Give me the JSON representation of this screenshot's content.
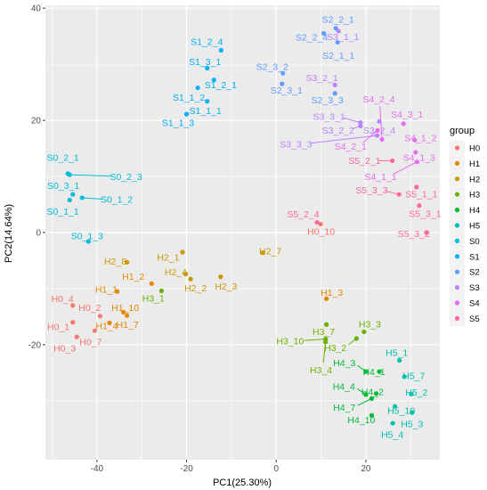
{
  "chart_data": {
    "type": "scatter",
    "xlabel": "PC1(25.30%)",
    "ylabel": "PC2(14.64%)",
    "xlim": [
      -51.5,
      36.5
    ],
    "ylim": [
      -40.5,
      40.5
    ],
    "xticks": [
      -40,
      -20,
      0,
      20
    ],
    "yticks": [
      -20,
      0,
      20,
      40
    ],
    "grid": true,
    "legend": {
      "title": "group",
      "position": "right"
    },
    "groups": [
      {
        "name": "H0",
        "color": "#F8766D"
      },
      {
        "name": "H1",
        "color": "#E58700"
      },
      {
        "name": "H2",
        "color": "#C99800"
      },
      {
        "name": "H3",
        "color": "#6BB100"
      },
      {
        "name": "H4",
        "color": "#00BA38"
      },
      {
        "name": "H5",
        "color": "#00C0AF"
      },
      {
        "name": "S0",
        "color": "#00BCD8"
      },
      {
        "name": "S1",
        "color": "#00B0F6"
      },
      {
        "name": "S2",
        "color": "#619CFF"
      },
      {
        "name": "S3",
        "color": "#B983FF"
      },
      {
        "name": "S4",
        "color": "#E76BF3"
      },
      {
        "name": "S5",
        "color": "#FF67A4"
      }
    ],
    "points": [
      {
        "label": "H0_1",
        "group": "H0",
        "x": -45.4,
        "y": -16.0,
        "lx": -48.6,
        "ly": -16.8
      },
      {
        "label": "H0_2",
        "group": "H0",
        "x": -39.3,
        "y": -14.9,
        "lx": -41.6,
        "ly": -13.4
      },
      {
        "label": "H0_3",
        "group": "H0",
        "x": -44.5,
        "y": -18.6,
        "lx": -47.2,
        "ly": -20.6
      },
      {
        "label": "H0_4",
        "group": "H0",
        "x": -45.4,
        "y": -13.0,
        "lx": -47.7,
        "ly": -11.8
      },
      {
        "label": "H0_7",
        "group": "H0",
        "x": -40.5,
        "y": -17.5,
        "lx": -41.4,
        "ly": -19.5
      },
      {
        "label": "H0_10",
        "group": "H0",
        "x": 9.9,
        "y": 1.5,
        "lx": 10.0,
        "ly": 0.2
      },
      {
        "label": "H1_1",
        "group": "H1",
        "x": -35.5,
        "y": -10.5,
        "lx": -37.9,
        "ly": -10.1
      },
      {
        "label": "H1_2",
        "group": "H1",
        "x": -27.8,
        "y": -9.1,
        "lx": -31.9,
        "ly": -7.8
      },
      {
        "label": "H1_3",
        "group": "H1",
        "x": 11.2,
        "y": -11.8,
        "lx": 12.4,
        "ly": -10.7
      },
      {
        "label": "H1_4",
        "group": "H1",
        "x": -37.2,
        "y": -16.1,
        "lx": -37.8,
        "ly": -16.6
      },
      {
        "label": "H1_7",
        "group": "H1",
        "x": -33.3,
        "y": -14.8,
        "lx": -33.2,
        "ly": -16.4
      },
      {
        "label": "H1_10",
        "group": "H1",
        "x": -34.1,
        "y": -14.2,
        "lx": -33.7,
        "ly": -13.4
      },
      {
        "label": "H2_1",
        "group": "H2",
        "x": -20.9,
        "y": -3.5,
        "lx": -24.1,
        "ly": -4.4
      },
      {
        "label": "H2_2",
        "group": "H2",
        "x": -19.1,
        "y": -8.3,
        "lx": -18.0,
        "ly": -9.9
      },
      {
        "label": "H2_3",
        "group": "H2",
        "x": -12.4,
        "y": -7.9,
        "lx": -11.2,
        "ly": -9.6
      },
      {
        "label": "H2_4",
        "group": "H2",
        "x": -20.2,
        "y": -7.4,
        "lx": -22.4,
        "ly": -7.0
      },
      {
        "label": "H2_7",
        "group": "H2",
        "x": -3.0,
        "y": -3.6,
        "lx": -1.3,
        "ly": -3.3
      },
      {
        "label": "H2_8",
        "group": "H2",
        "x": -33.3,
        "y": -5.3,
        "lx": -35.9,
        "ly": -5.1
      },
      {
        "label": "H3_1",
        "group": "H3",
        "x": -25.6,
        "y": -10.4,
        "lx": -27.4,
        "ly": -11.7
      },
      {
        "label": "H3_2",
        "group": "H3",
        "x": 17.9,
        "y": -18.9,
        "lx": 13.2,
        "ly": -20.5
      },
      {
        "label": "H3_3",
        "group": "H3",
        "x": 19.6,
        "y": -17.7,
        "lx": 20.9,
        "ly": -16.3
      },
      {
        "label": "H3_4",
        "group": "H3",
        "x": 11.0,
        "y": -19.5,
        "lx": 10.0,
        "ly": -24.5
      },
      {
        "label": "H3_7",
        "group": "H3",
        "x": 11.2,
        "y": -16.4,
        "lx": 10.6,
        "ly": -17.7
      },
      {
        "label": "H3_10",
        "group": "H3",
        "x": 11.0,
        "y": -19.0,
        "lx": 3.1,
        "ly": -19.3
      },
      {
        "label": "H4_1",
        "group": "H4",
        "x": 23.0,
        "y": -24.8,
        "lx": 21.8,
        "ly": -24.8
      },
      {
        "label": "H4_2",
        "group": "H4",
        "x": 22.3,
        "y": -28.7,
        "lx": 21.5,
        "ly": -28.4
      },
      {
        "label": "H4_3",
        "group": "H4",
        "x": 20.0,
        "y": -24.8,
        "lx": 15.2,
        "ly": -23.2
      },
      {
        "label": "H4_4",
        "group": "H4",
        "x": 20.0,
        "y": -28.9,
        "lx": 15.1,
        "ly": -27.4
      },
      {
        "label": "H4_7",
        "group": "H4",
        "x": 21.3,
        "y": -29.6,
        "lx": 15.2,
        "ly": -31.2
      },
      {
        "label": "H4_10",
        "group": "H4",
        "x": 21.3,
        "y": -32.6,
        "lx": 19.0,
        "ly": -33.4
      },
      {
        "label": "H5_1",
        "group": "H5",
        "x": 27.5,
        "y": -22.8,
        "lx": 26.9,
        "ly": -21.4
      },
      {
        "label": "H5_2",
        "group": "H5",
        "x": 30.1,
        "y": -28.8,
        "lx": 31.3,
        "ly": -28.5
      },
      {
        "label": "H5_3",
        "group": "H5",
        "x": 30.3,
        "y": -32.1,
        "lx": 30.3,
        "ly": -34.1
      },
      {
        "label": "H5_4",
        "group": "H5",
        "x": 26.0,
        "y": -34.0,
        "lx": 25.9,
        "ly": -36.0
      },
      {
        "label": "H5_7",
        "group": "H5",
        "x": 28.6,
        "y": -25.7,
        "lx": 30.7,
        "ly": -25.5
      },
      {
        "label": "H5_10",
        "group": "H5",
        "x": 26.5,
        "y": -31.0,
        "lx": 27.9,
        "ly": -31.7
      },
      {
        "label": "S0_1_1",
        "group": "S0",
        "x": -46.1,
        "y": 5.8,
        "lx": -47.6,
        "ly": 3.8
      },
      {
        "label": "S0_1_2",
        "group": "S0",
        "x": -43.3,
        "y": 6.2,
        "lx": -35.6,
        "ly": 5.9
      },
      {
        "label": "S0_1_3",
        "group": "S0",
        "x": -41.9,
        "y": -1.6,
        "lx": -42.2,
        "ly": -0.6
      },
      {
        "label": "S0_2_1",
        "group": "S0",
        "x": -46.5,
        "y": 10.5,
        "lx": -47.6,
        "ly": 13.4
      },
      {
        "label": "S0_2_3",
        "group": "S0",
        "x": -46.1,
        "y": 10.3,
        "lx": -33.5,
        "ly": 10.0
      },
      {
        "label": "S0_3_1",
        "group": "S0",
        "x": -45.4,
        "y": 6.8,
        "lx": -47.5,
        "ly": 8.4
      },
      {
        "label": "S1_1_1",
        "group": "S1",
        "x": -15.4,
        "y": 23.4,
        "lx": -15.8,
        "ly": 21.7
      },
      {
        "label": "S1_1_2",
        "group": "S1",
        "x": -17.5,
        "y": 25.8,
        "lx": -19.5,
        "ly": 24.1
      },
      {
        "label": "S1_1_3",
        "group": "S1",
        "x": -20.0,
        "y": 21.1,
        "lx": -21.9,
        "ly": 19.6
      },
      {
        "label": "S1_2_1",
        "group": "S1",
        "x": -13.9,
        "y": 27.2,
        "lx": -12.4,
        "ly": 26.3
      },
      {
        "label": "S1_2_4",
        "group": "S1",
        "x": -12.3,
        "y": 32.5,
        "lx": -15.5,
        "ly": 34.0
      },
      {
        "label": "S1_3_1",
        "group": "S1",
        "x": -15.4,
        "y": 29.3,
        "lx": -15.9,
        "ly": 30.5
      },
      {
        "label": "S2_1_1",
        "group": "S2",
        "x": 13.7,
        "y": 33.9,
        "lx": 13.9,
        "ly": 31.6
      },
      {
        "label": "S2_2_1",
        "group": "S2",
        "x": 13.3,
        "y": 36.4,
        "lx": 13.8,
        "ly": 38.0
      },
      {
        "label": "S2_2_4",
        "group": "S2",
        "x": 10.6,
        "y": 35.5,
        "lx": 7.9,
        "ly": 34.8
      },
      {
        "label": "S2_3_1",
        "group": "S2",
        "x": 1.3,
        "y": 26.5,
        "lx": 2.3,
        "ly": 25.4
      },
      {
        "label": "S2_3_2",
        "group": "S2",
        "x": 1.5,
        "y": 28.4,
        "lx": -0.9,
        "ly": 29.6
      },
      {
        "label": "S2_3_3",
        "group": "S2",
        "x": 13.1,
        "y": 24.8,
        "lx": 11.4,
        "ly": 23.6
      },
      {
        "label": "S3_1_1",
        "group": "S3",
        "x": 13.9,
        "y": 35.9,
        "lx": 14.9,
        "ly": 34.9
      },
      {
        "label": "S3_2_1",
        "group": "S3",
        "x": 13.1,
        "y": 26.3,
        "lx": 10.2,
        "ly": 27.6
      },
      {
        "label": "S3_2_2",
        "group": "S3",
        "x": 18.8,
        "y": 19.0,
        "lx": 13.8,
        "ly": 18.2
      },
      {
        "label": "S3_2_4",
        "group": "S3",
        "x": 23.0,
        "y": 19.8,
        "lx": 23.0,
        "ly": 18.2
      },
      {
        "label": "S3_3_1",
        "group": "S3",
        "x": 18.8,
        "y": 19.6,
        "lx": 11.8,
        "ly": 20.7
      },
      {
        "label": "S3_3_3",
        "group": "S3",
        "x": 22.5,
        "y": 17.3,
        "lx": 4.4,
        "ly": 15.8
      },
      {
        "label": "S4_1_1",
        "group": "S4",
        "x": 31.4,
        "y": 12.6,
        "lx": 23.3,
        "ly": 10.0
      },
      {
        "label": "S4_1_2",
        "group": "S4",
        "x": 30.9,
        "y": 16.5,
        "lx": 32.2,
        "ly": 16.9
      },
      {
        "label": "S4_1_3",
        "group": "S4",
        "x": 31.1,
        "y": 14.3,
        "lx": 31.9,
        "ly": 13.4
      },
      {
        "label": "S4_2_1",
        "group": "S4",
        "x": 22.6,
        "y": 18.2,
        "lx": 16.6,
        "ly": 15.4
      },
      {
        "label": "S4_2_4",
        "group": "S4",
        "x": 23.6,
        "y": 16.6,
        "lx": 22.9,
        "ly": 23.8
      },
      {
        "label": "S4_3_1",
        "group": "S4",
        "x": 28.4,
        "y": 19.4,
        "lx": 29.2,
        "ly": 21.1
      },
      {
        "label": "S5_1_1",
        "group": "S5",
        "x": 31.3,
        "y": 8.1,
        "lx": 32.4,
        "ly": 6.9
      },
      {
        "label": "S5_2_1",
        "group": "S5",
        "x": 25.9,
        "y": 12.8,
        "lx": 19.7,
        "ly": 12.8
      },
      {
        "label": "S5_2_4",
        "group": "S5",
        "x": 9.1,
        "y": 1.8,
        "lx": 6.0,
        "ly": 3.3
      },
      {
        "label": "S5_3_1",
        "group": "S5",
        "x": 31.9,
        "y": 4.8,
        "lx": 33.2,
        "ly": 3.4
      },
      {
        "label": "S5_3_2",
        "group": "S5",
        "x": 33.5,
        "y": 0.0,
        "lx": 30.7,
        "ly": -0.2
      },
      {
        "label": "S5_3_3",
        "group": "S5",
        "x": 27.4,
        "y": 6.8,
        "lx": 21.3,
        "ly": 7.6
      }
    ]
  }
}
